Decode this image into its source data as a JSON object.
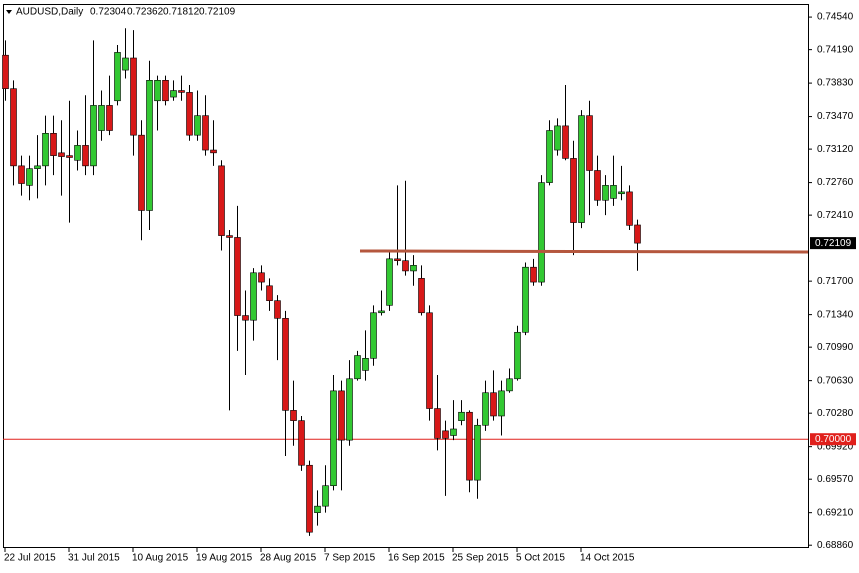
{
  "chart_data": {
    "type": "candlestick",
    "title": "AUDUSD,Daily",
    "categories": [
      "22 Jul 2015",
      null,
      null,
      null,
      null,
      null,
      null,
      null,
      "31 Jul 2015",
      null,
      null,
      null,
      null,
      null,
      null,
      null,
      "10 Aug 2015",
      null,
      null,
      null,
      null,
      null,
      null,
      null,
      "19 Aug 2015",
      null,
      null,
      null,
      null,
      null,
      null,
      null,
      "28 Aug 2015",
      null,
      null,
      null,
      null,
      null,
      null,
      null,
      "7 Sep 2015",
      null,
      null,
      null,
      null,
      null,
      null,
      null,
      "16 Sep 2015",
      null,
      null,
      null,
      null,
      null,
      null,
      null,
      "25 Sep 2015",
      null,
      null,
      null,
      null,
      null,
      null,
      null,
      "5 Oct 2015",
      null,
      null,
      null,
      null,
      null,
      null,
      null,
      "14 Oct 2015",
      null,
      null,
      null,
      null,
      null,
      null,
      null
    ],
    "open": [
      0.7413,
      0.7377,
      0.7294,
      0.7273,
      0.7291,
      0.7294,
      0.7329,
      0.7308,
      0.7305,
      0.73,
      0.7316,
      0.7294,
      0.7332,
      0.7359,
      0.7364,
      0.7397,
      0.741,
      0.7327,
      0.7246,
      0.7364,
      0.7386,
      0.7368,
      0.7375,
      0.7373,
      0.7327,
      0.7348,
      0.7311,
      0.7294,
      0.7219,
      0.7217,
      0.7133,
      0.7128,
      0.7179,
      0.7165,
      0.7149,
      0.713,
      0.7031,
      0.702,
      0.6972,
      0.6921,
      0.6928,
      0.695,
      0.7052,
      0.6999,
      0.7065,
      0.7074,
      0.7087,
      0.7136,
      0.7144,
      0.7194,
      0.7192,
      0.7181,
      0.7173,
      0.7136,
      0.7033,
      0.7009,
      0.7004,
      0.702,
      0.7029,
      0.6956,
      0.7015,
      0.705,
      0.7025,
      0.7052,
      0.7065,
      0.7115,
      0.7185,
      0.7169,
      0.7276,
      0.7311,
      0.7337,
      0.7302,
      0.7233,
      0.7348,
      0.7289,
      0.7257,
      0.7259,
      0.7264,
      0.7266,
      0.72304
    ],
    "high": [
      0.7429,
      0.7386,
      0.7305,
      0.7305,
      0.7327,
      0.7348,
      0.7348,
      0.7343,
      0.7364,
      0.7332,
      0.737,
      0.7429,
      0.7375,
      0.7391,
      0.7424,
      0.7442,
      0.744,
      0.7343,
      0.7407,
      0.7391,
      0.7391,
      0.7386,
      0.7391,
      0.7381,
      0.7375,
      0.737,
      0.7343,
      0.73,
      0.7225,
      0.7251,
      0.716,
      0.7184,
      0.7187,
      0.7173,
      0.7155,
      0.7138,
      0.7063,
      0.7025,
      0.6977,
      0.6945,
      0.6972,
      0.7069,
      0.7063,
      0.7085,
      0.7095,
      0.7117,
      0.7144,
      0.716,
      0.7203,
      0.7273,
      0.7278,
      0.7198,
      0.7187,
      0.7144,
      0.7069,
      0.702,
      0.7042,
      0.7042,
      0.7031,
      0.7022,
      0.7063,
      0.7074,
      0.7063,
      0.7076,
      0.7122,
      0.719,
      0.7194,
      0.7284,
      0.7343,
      0.7345,
      0.7381,
      0.7321,
      0.7354,
      0.7364,
      0.7305,
      0.7284,
      0.7305,
      0.7294,
      0.7273,
      0.72362
    ],
    "low": [
      0.7364,
      0.7273,
      0.7262,
      0.7257,
      0.7259,
      0.7273,
      0.7284,
      0.7262,
      0.7233,
      0.7289,
      0.7284,
      0.7284,
      0.7321,
      0.7327,
      0.7359,
      0.7388,
      0.7305,
      0.7214,
      0.7225,
      0.7332,
      0.7359,
      0.7364,
      0.7364,
      0.7321,
      0.7321,
      0.7305,
      0.7294,
      0.7203,
      0.7031,
      0.7095,
      0.7069,
      0.7106,
      0.716,
      0.7138,
      0.7085,
      0.6982,
      0.6993,
      0.6966,
      0.6896,
      0.6907,
      0.6921,
      0.6945,
      0.6945,
      0.6993,
      0.7063,
      0.7063,
      0.7079,
      0.7133,
      0.7138,
      0.7187,
      0.7176,
      0.7165,
      0.7133,
      0.702,
      0.6988,
      0.6939,
      0.6999,
      0.7015,
      0.6943,
      0.6936,
      0.7009,
      0.702,
      0.7004,
      0.705,
      0.7063,
      0.7112,
      0.7165,
      0.7165,
      0.7273,
      0.7305,
      0.73,
      0.7198,
      0.7227,
      0.7241,
      0.7251,
      0.7241,
      0.7251,
      0.7257,
      0.7225,
      0.71812
    ],
    "close": [
      0.7377,
      0.7294,
      0.7275,
      0.7291,
      0.7294,
      0.7329,
      0.7305,
      0.7304,
      0.7303,
      0.7316,
      0.7294,
      0.7359,
      0.7359,
      0.7332,
      0.7416,
      0.741,
      0.7327,
      0.7246,
      0.7386,
      0.7386,
      0.7364,
      0.7375,
      0.7373,
      0.7327,
      0.7348,
      0.7311,
      0.7308,
      0.7219,
      0.7217,
      0.7133,
      0.7128,
      0.7179,
      0.7169,
      0.7149,
      0.713,
      0.7031,
      0.702,
      0.6972,
      0.69,
      0.6928,
      0.695,
      0.7052,
      0.6999,
      0.7065,
      0.709,
      0.7087,
      0.7136,
      0.7138,
      0.7194,
      0.7192,
      0.7181,
      0.7187,
      0.7136,
      0.7033,
      0.7001,
      0.7001,
      0.7011,
      0.7029,
      0.6956,
      0.7015,
      0.705,
      0.7025,
      0.7052,
      0.7065,
      0.7115,
      0.7185,
      0.7169,
      0.7276,
      0.7332,
      0.7337,
      0.7302,
      0.7233,
      0.7348,
      0.7289,
      0.7257,
      0.7273,
      0.7273,
      0.7266,
      0.723,
      0.72109
    ],
    "up_color": "#32c832",
    "down_color": "#d81818",
    "ylim": [
      0.6883,
      0.7467
    ],
    "yticks": [
      {
        "value": 0.7454,
        "label": "0.74540"
      },
      {
        "value": 0.7419,
        "label": "0.74190"
      },
      {
        "value": 0.7383,
        "label": "0.73830"
      },
      {
        "value": 0.7347,
        "label": "0.73470"
      },
      {
        "value": 0.7312,
        "label": "0.73120"
      },
      {
        "value": 0.7276,
        "label": "0.72760"
      },
      {
        "value": 0.7241,
        "label": "0.72410"
      },
      {
        "value": 0.717,
        "label": "0.71700"
      },
      {
        "value": 0.7134,
        "label": "0.71340"
      },
      {
        "value": 0.7099,
        "label": "0.70990"
      },
      {
        "value": 0.7063,
        "label": "0.70630"
      },
      {
        "value": 0.7028,
        "label": "0.70280"
      },
      {
        "value": 0.6992,
        "label": "0.69920"
      },
      {
        "value": 0.6957,
        "label": "0.69570"
      },
      {
        "value": 0.6921,
        "label": "0.69210"
      },
      {
        "value": 0.6886,
        "label": "0.68860"
      }
    ],
    "levels": [
      {
        "value": 0.7,
        "label": "0.70000",
        "color": "#e0201c"
      }
    ]
  }
}
